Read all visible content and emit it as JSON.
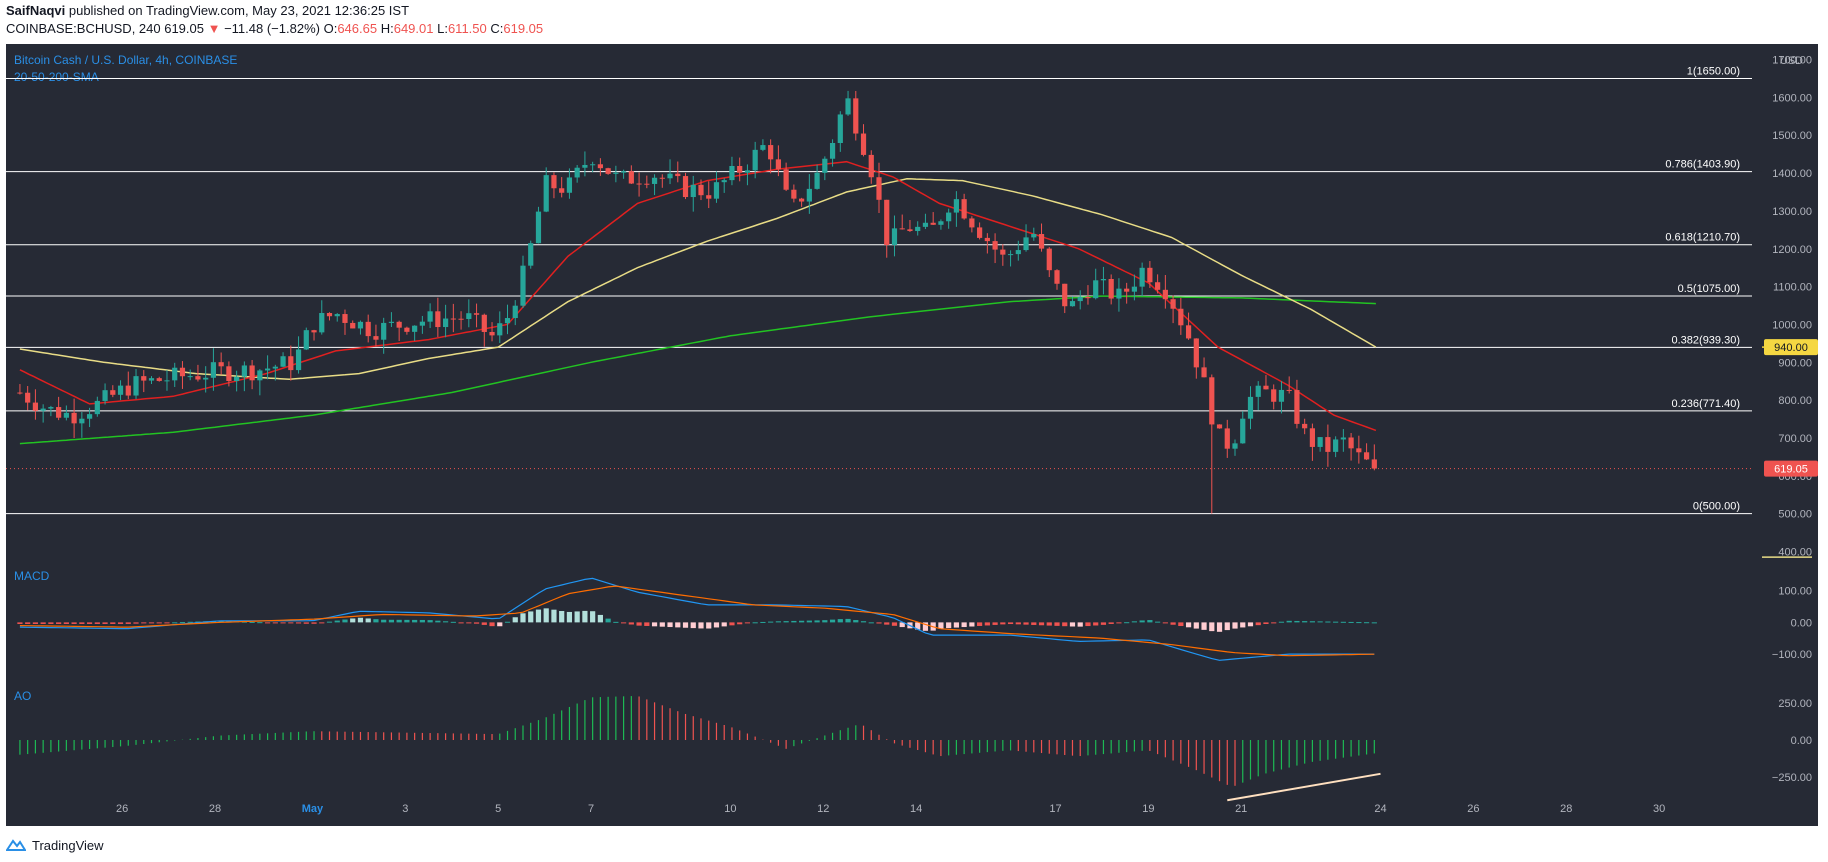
{
  "header": {
    "author": "SaifNaqvi",
    "published": " published on TradingView.com, May 23, 2021 12:36:25 IST",
    "symbol": "COINBASE:BCHUSD, 240 ",
    "price": "619.05",
    "arrow": " ▼ ",
    "change": "−11.48 (−1.82%)",
    "o_label": " O:",
    "o": "646.65",
    "h_label": " H:",
    "h": "649.01",
    "l_label": " L:",
    "l": "611.50",
    "c_label": " C:",
    "c": "619.05"
  },
  "footer": {
    "brand": "TradingView"
  },
  "colors": {
    "bg": "#262a35",
    "up": "#26a69a",
    "down": "#ef5350",
    "sma20": "#e02020",
    "sma50": "#e8dc86",
    "sma200": "#22c322",
    "macd": "#2196f3",
    "signal": "#ff6d00",
    "fib": "#ffffff",
    "label_blue": "#2a8fe6",
    "axis_text": "#b2b5be"
  },
  "chart_data": {
    "type": "candlestick",
    "title": "Bitcoin Cash / U.S. Dollar, 4h, COINBASE",
    "subtitle": "20-50-200-SMA",
    "currency": "USD",
    "y_ticks": [
      1700,
      1600,
      1500,
      1400,
      1300,
      1200,
      1100,
      1000,
      900,
      800,
      700,
      600,
      500,
      400
    ],
    "y_tick_labels": [
      "1700.00",
      "1600.00",
      "1500.00",
      "1400.00",
      "1300.00",
      "1200.00",
      "1100.00",
      "1000.00",
      "900.00",
      "800.00",
      "700.00",
      "600.00",
      "500.00",
      "400.00"
    ],
    "ylim": [
      388,
      1720
    ],
    "x_ticks": [
      {
        "day": 25.9,
        "label": "26"
      },
      {
        "day": 27.9,
        "label": "28"
      },
      {
        "day": 30.0,
        "label": "May"
      },
      {
        "day": 32.0,
        "label": "3"
      },
      {
        "day": 34.0,
        "label": "5"
      },
      {
        "day": 36.0,
        "label": "7"
      },
      {
        "day": 39.0,
        "label": "10"
      },
      {
        "day": 41.0,
        "label": "12"
      },
      {
        "day": 43.0,
        "label": "14"
      },
      {
        "day": 46.0,
        "label": "17"
      },
      {
        "day": 48.0,
        "label": "19"
      },
      {
        "day": 50.0,
        "label": "21"
      },
      {
        "day": 53.0,
        "label": "24"
      },
      {
        "day": 55.0,
        "label": "26"
      },
      {
        "day": 57.0,
        "label": "28"
      },
      {
        "day": 59.0,
        "label": "30"
      }
    ],
    "fib_levels": [
      {
        "value": 1650,
        "label": "1(1650.00)"
      },
      {
        "value": 1403.9,
        "label": "0.786(1403.90)"
      },
      {
        "value": 1210.7,
        "label": "0.618(1210.70)"
      },
      {
        "value": 1075,
        "label": "0.5(1075.00)"
      },
      {
        "value": 939.3,
        "label": "0.382(939.30)"
      },
      {
        "value": 771.4,
        "label": "0.236(771.40)"
      },
      {
        "value": 500,
        "label": "0(500.00)"
      }
    ],
    "marker_lines": [
      {
        "value": 940,
        "label": "940.00",
        "color": "#f5d742"
      },
      {
        "value": 385,
        "color": "#e8dc86"
      }
    ],
    "current_price": {
      "value": 619.05,
      "label": "619.05"
    },
    "price_keypoints": [
      {
        "day": 23.7,
        "close": 820
      },
      {
        "day": 24.3,
        "close": 775
      },
      {
        "day": 24.8,
        "close": 760
      },
      {
        "day": 25.4,
        "close": 790
      },
      {
        "day": 26.1,
        "close": 840
      },
      {
        "day": 27.0,
        "close": 860
      },
      {
        "day": 27.9,
        "close": 875
      },
      {
        "day": 28.8,
        "close": 880
      },
      {
        "day": 29.6,
        "close": 900
      },
      {
        "day": 30.0,
        "close": 1000
      },
      {
        "day": 30.5,
        "close": 1030
      },
      {
        "day": 31.3,
        "close": 985
      },
      {
        "day": 32.3,
        "close": 1010
      },
      {
        "day": 33.3,
        "close": 1020
      },
      {
        "day": 33.9,
        "close": 965
      },
      {
        "day": 34.2,
        "close": 1020
      },
      {
        "day": 34.6,
        "close": 1150
      },
      {
        "day": 35.0,
        "close": 1370
      },
      {
        "day": 35.5,
        "close": 1360
      },
      {
        "day": 36.0,
        "close": 1450
      },
      {
        "day": 36.6,
        "close": 1380
      },
      {
        "day": 37.3,
        "close": 1400
      },
      {
        "day": 38.0,
        "close": 1360
      },
      {
        "day": 38.6,
        "close": 1350
      },
      {
        "day": 39.3,
        "close": 1420
      },
      {
        "day": 39.8,
        "close": 1480
      },
      {
        "day": 40.3,
        "close": 1300
      },
      {
        "day": 40.9,
        "close": 1400
      },
      {
        "day": 41.2,
        "close": 1490
      },
      {
        "day": 41.5,
        "close": 1600
      },
      {
        "day": 42.0,
        "close": 1430
      },
      {
        "day": 42.4,
        "close": 1210
      },
      {
        "day": 42.8,
        "close": 1260
      },
      {
        "day": 43.3,
        "close": 1240
      },
      {
        "day": 43.8,
        "close": 1340
      },
      {
        "day": 44.3,
        "close": 1260
      },
      {
        "day": 44.9,
        "close": 1170
      },
      {
        "day": 45.5,
        "close": 1250
      },
      {
        "day": 45.9,
        "close": 1120
      },
      {
        "day": 46.3,
        "close": 1040
      },
      {
        "day": 46.8,
        "close": 1110
      },
      {
        "day": 47.4,
        "close": 1070
      },
      {
        "day": 47.9,
        "close": 1150
      },
      {
        "day": 48.4,
        "close": 1090
      },
      {
        "day": 48.9,
        "close": 960
      },
      {
        "day": 49.2,
        "close": 840
      },
      {
        "day": 49.5,
        "close": 700
      },
      {
        "day": 49.8,
        "close": 680
      },
      {
        "day": 50.1,
        "close": 800
      },
      {
        "day": 50.5,
        "close": 820
      },
      {
        "day": 51.0,
        "close": 810
      },
      {
        "day": 51.4,
        "close": 700
      },
      {
        "day": 51.8,
        "close": 670
      },
      {
        "day": 52.2,
        "close": 690
      },
      {
        "day": 52.6,
        "close": 640
      },
      {
        "day": 52.9,
        "close": 619
      }
    ],
    "sma20_keypoints": [
      {
        "day": 23.7,
        "value": 880
      },
      {
        "day": 25.2,
        "value": 790
      },
      {
        "day": 27.0,
        "value": 810
      },
      {
        "day": 29.0,
        "value": 870
      },
      {
        "day": 30.5,
        "value": 930
      },
      {
        "day": 32.5,
        "value": 960
      },
      {
        "day": 34.2,
        "value": 1000
      },
      {
        "day": 35.5,
        "value": 1180
      },
      {
        "day": 37.0,
        "value": 1320
      },
      {
        "day": 38.5,
        "value": 1380
      },
      {
        "day": 40.0,
        "value": 1410
      },
      {
        "day": 41.5,
        "value": 1430
      },
      {
        "day": 42.5,
        "value": 1390
      },
      {
        "day": 43.5,
        "value": 1320
      },
      {
        "day": 45.0,
        "value": 1260
      },
      {
        "day": 46.5,
        "value": 1200
      },
      {
        "day": 48.0,
        "value": 1110
      },
      {
        "day": 49.5,
        "value": 940
      },
      {
        "day": 51.0,
        "value": 840
      },
      {
        "day": 52.0,
        "value": 760
      },
      {
        "day": 52.9,
        "value": 720
      }
    ],
    "sma50_keypoints": [
      {
        "day": 23.7,
        "value": 935
      },
      {
        "day": 25.5,
        "value": 900
      },
      {
        "day": 27.5,
        "value": 870
      },
      {
        "day": 29.5,
        "value": 855
      },
      {
        "day": 31.0,
        "value": 870
      },
      {
        "day": 32.5,
        "value": 910
      },
      {
        "day": 34.0,
        "value": 940
      },
      {
        "day": 35.5,
        "value": 1060
      },
      {
        "day": 37.0,
        "value": 1150
      },
      {
        "day": 38.5,
        "value": 1220
      },
      {
        "day": 40.0,
        "value": 1280
      },
      {
        "day": 41.5,
        "value": 1350
      },
      {
        "day": 42.8,
        "value": 1385
      },
      {
        "day": 44.0,
        "value": 1380
      },
      {
        "day": 45.5,
        "value": 1340
      },
      {
        "day": 47.0,
        "value": 1290
      },
      {
        "day": 48.5,
        "value": 1230
      },
      {
        "day": 50.0,
        "value": 1130
      },
      {
        "day": 51.5,
        "value": 1040
      },
      {
        "day": 52.9,
        "value": 940
      }
    ],
    "sma200_keypoints": [
      {
        "day": 23.7,
        "value": 685
      },
      {
        "day": 27.0,
        "value": 715
      },
      {
        "day": 30.0,
        "value": 760
      },
      {
        "day": 33.0,
        "value": 820
      },
      {
        "day": 36.0,
        "value": 900
      },
      {
        "day": 39.0,
        "value": 970
      },
      {
        "day": 42.0,
        "value": 1020
      },
      {
        "day": 45.0,
        "value": 1060
      },
      {
        "day": 47.0,
        "value": 1075
      },
      {
        "day": 50.0,
        "value": 1070
      },
      {
        "day": 52.9,
        "value": 1055
      }
    ],
    "macd": {
      "label": "MACD",
      "ylim": [
        -150,
        165
      ],
      "y_ticks": [
        100,
        0,
        -100
      ],
      "y_tick_labels": [
        "100.00",
        "0.00",
        "−100.00"
      ],
      "macd_keypoints": [
        {
          "day": 23.7,
          "value": -15
        },
        {
          "day": 26.0,
          "value": -20
        },
        {
          "day": 28.0,
          "value": 5
        },
        {
          "day": 30.0,
          "value": 5
        },
        {
          "day": 31.0,
          "value": 35
        },
        {
          "day": 32.5,
          "value": 30
        },
        {
          "day": 34.0,
          "value": 10
        },
        {
          "day": 35.0,
          "value": 105
        },
        {
          "day": 36.0,
          "value": 140
        },
        {
          "day": 37.0,
          "value": 95
        },
        {
          "day": 38.5,
          "value": 55
        },
        {
          "day": 40.0,
          "value": 55
        },
        {
          "day": 41.5,
          "value": 50
        },
        {
          "day": 42.5,
          "value": 15
        },
        {
          "day": 43.3,
          "value": -40
        },
        {
          "day": 45.0,
          "value": -40
        },
        {
          "day": 46.5,
          "value": -60
        },
        {
          "day": 48.0,
          "value": -55
        },
        {
          "day": 49.5,
          "value": -120
        },
        {
          "day": 51.0,
          "value": -100
        },
        {
          "day": 52.9,
          "value": -100
        }
      ],
      "signal_keypoints": [
        {
          "day": 23.7,
          "value": -10
        },
        {
          "day": 26.0,
          "value": -15
        },
        {
          "day": 28.0,
          "value": 0
        },
        {
          "day": 30.0,
          "value": 10
        },
        {
          "day": 31.5,
          "value": 25
        },
        {
          "day": 33.5,
          "value": 20
        },
        {
          "day": 34.5,
          "value": 30
        },
        {
          "day": 35.5,
          "value": 90
        },
        {
          "day": 36.5,
          "value": 115
        },
        {
          "day": 38.0,
          "value": 85
        },
        {
          "day": 39.5,
          "value": 55
        },
        {
          "day": 41.0,
          "value": 45
        },
        {
          "day": 42.5,
          "value": 25
        },
        {
          "day": 43.5,
          "value": -20
        },
        {
          "day": 45.0,
          "value": -35
        },
        {
          "day": 47.0,
          "value": -50
        },
        {
          "day": 48.5,
          "value": -70
        },
        {
          "day": 49.8,
          "value": -95
        },
        {
          "day": 51.0,
          "value": -105
        },
        {
          "day": 52.9,
          "value": -100
        }
      ]
    },
    "ao": {
      "label": "AO",
      "ylim": [
        -340,
        340
      ],
      "y_ticks": [
        250,
        0,
        -250
      ],
      "y_tick_labels": [
        "250.00",
        "0.00",
        "−250.00"
      ],
      "keypoints": [
        {
          "day": 23.7,
          "value": -100
        },
        {
          "day": 26.0,
          "value": -40
        },
        {
          "day": 28.0,
          "value": 30
        },
        {
          "day": 30.0,
          "value": 60
        },
        {
          "day": 32.0,
          "value": 50
        },
        {
          "day": 34.0,
          "value": 40
        },
        {
          "day": 35.0,
          "value": 150
        },
        {
          "day": 36.0,
          "value": 290
        },
        {
          "day": 37.0,
          "value": 300
        },
        {
          "day": 38.0,
          "value": 180
        },
        {
          "day": 39.0,
          "value": 90
        },
        {
          "day": 40.2,
          "value": -60
        },
        {
          "day": 41.3,
          "value": 60
        },
        {
          "day": 41.8,
          "value": 110
        },
        {
          "day": 42.5,
          "value": -20
        },
        {
          "day": 43.5,
          "value": -110
        },
        {
          "day": 45.0,
          "value": -70
        },
        {
          "day": 46.5,
          "value": -110
        },
        {
          "day": 48.0,
          "value": -70
        },
        {
          "day": 49.0,
          "value": -200
        },
        {
          "day": 49.8,
          "value": -320
        },
        {
          "day": 50.5,
          "value": -230
        },
        {
          "day": 51.5,
          "value": -150
        },
        {
          "day": 52.9,
          "value": -90
        }
      ],
      "trendline": {
        "x1": 49.7,
        "y1": -410,
        "x2": 53.0,
        "y2": -230
      }
    }
  }
}
